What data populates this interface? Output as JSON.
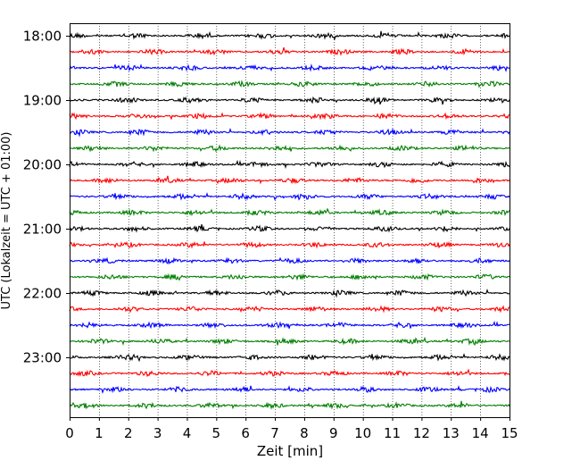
{
  "chart_data": {
    "type": "line",
    "title": "",
    "xlabel": "Zeit  [min]",
    "ylabel": "UTC (Lokalzeit = UTC + 01:00)",
    "xlim": [
      0,
      15
    ],
    "x_ticks": [
      "0",
      "1",
      "2",
      "3",
      "4",
      "5",
      "6",
      "7",
      "8",
      "9",
      "10",
      "11",
      "12",
      "13",
      "14",
      "15"
    ],
    "y_tick_labels": [
      "18:00",
      "19:00",
      "20:00",
      "21:00",
      "22:00",
      "23:00"
    ],
    "grid": "vertical dotted at each minute",
    "trace_interval_minutes": 15,
    "first_trace": "18:00",
    "trace_count": 24,
    "trace_colors": [
      "#000000",
      "#ff0000",
      "#0000ff",
      "#007f00"
    ]
  }
}
